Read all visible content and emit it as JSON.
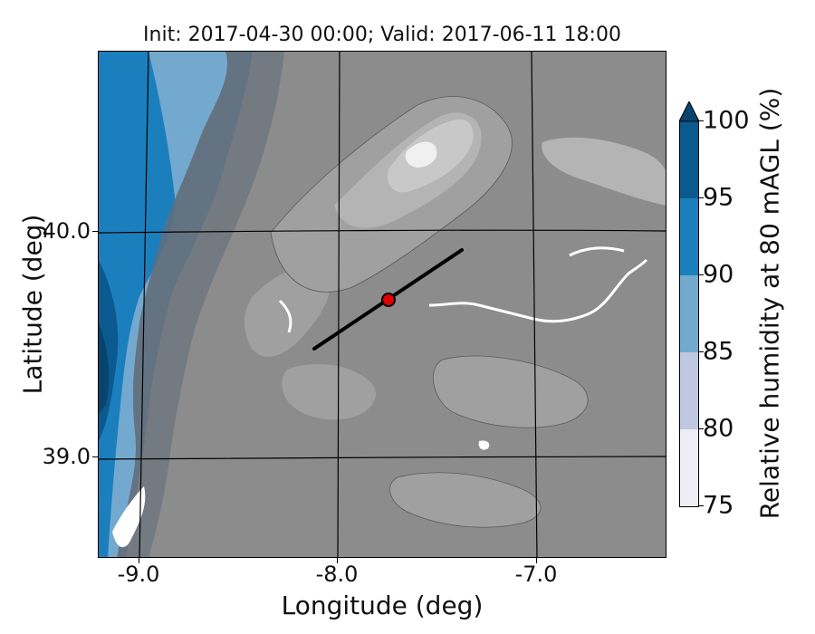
{
  "title": "Init: 2017-04-30 00:00; Valid: 2017-06-11 18:00",
  "axes": {
    "xlabel": "Longitude (deg)",
    "ylabel": "Latitude (deg)",
    "xticks": [
      "-9.0",
      "-8.0",
      "-7.0"
    ],
    "yticks": [
      "40.0",
      "39.0"
    ]
  },
  "colorbar": {
    "label": "Relative humidity at 80 mAGL (%)",
    "ticks": [
      "100",
      "95",
      "90",
      "85",
      "80",
      "75"
    ],
    "levels": [
      75,
      80,
      85,
      90,
      95,
      100
    ],
    "colors": [
      "#efedf5",
      "#bfc8e0",
      "#74a9cf",
      "#1c7fbd",
      "#0a5a8f",
      "#08456e"
    ],
    "extend": "max"
  },
  "map": {
    "land_colors": [
      "#8c8c8c",
      "#a0a0a0",
      "#b4b4b4",
      "#c8c8c8",
      "#e6e6e6"
    ],
    "transect": {
      "start": {
        "lon": -8.12,
        "lat": 39.48
      },
      "end": {
        "lon": -7.38,
        "lat": 39.92
      },
      "color": "#000000"
    },
    "site_marker": {
      "lon": -7.75,
      "lat": 39.7,
      "color": "#e00000"
    }
  }
}
